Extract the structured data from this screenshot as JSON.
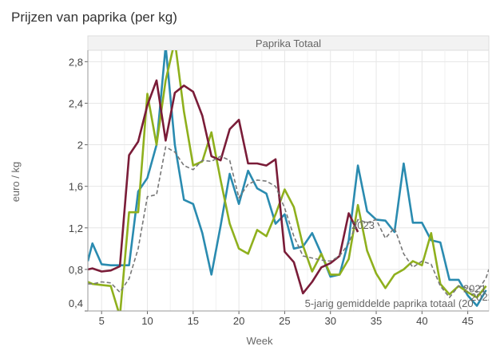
{
  "chart_data": {
    "type": "line",
    "title": "Prijzen van paprika (per kg)",
    "panel_title": "Paprika Totaal",
    "xlabel": "Week",
    "ylabel": "euro / kg",
    "xlim": [
      3.5,
      47.3
    ],
    "ylim": [
      0.4,
      2.91
    ],
    "xticks": [
      5,
      10,
      15,
      20,
      25,
      30,
      35,
      40,
      45
    ],
    "yticks": [
      0.4,
      0.8,
      1.2,
      1.6,
      2.0,
      2.4,
      2.8
    ],
    "ytick_labels": [
      "0,4",
      "0,8",
      "1,2",
      "1,6",
      "2",
      "2,4",
      "2,8"
    ],
    "grid": true,
    "series": [
      {
        "name": "2021",
        "color": "#2a8bb0",
        "dash": false,
        "label": "2021",
        "label_at": [
          44.5,
          0.58
        ],
        "x": [
          3.5,
          4,
          5,
          6,
          7,
          8,
          9,
          10,
          11,
          12,
          13,
          14,
          15,
          16,
          17,
          18,
          19,
          20,
          21,
          22,
          23,
          24,
          25,
          26,
          27,
          28,
          29,
          30,
          31,
          32,
          33,
          34,
          35,
          36,
          37,
          38,
          39,
          40,
          41,
          42,
          43,
          44,
          45,
          46,
          47
        ],
        "y": [
          0.88,
          1.05,
          0.85,
          0.84,
          0.84,
          0.84,
          1.55,
          1.68,
          2.0,
          2.95,
          2.0,
          1.47,
          1.43,
          1.15,
          0.75,
          1.22,
          1.72,
          1.43,
          1.75,
          1.58,
          1.53,
          1.24,
          1.33,
          1.0,
          1.02,
          1.15,
          0.95,
          0.73,
          0.75,
          1.08,
          1.8,
          1.36,
          1.28,
          1.27,
          1.16,
          1.82,
          1.25,
          1.25,
          1.08,
          1.06,
          0.7,
          0.7,
          0.55,
          0.45,
          0.6
        ]
      },
      {
        "name": "2022",
        "color": "#8fb01d",
        "dash": false,
        "label": "2022",
        "label_at": [
          45.3,
          0.5
        ],
        "x": [
          3.5,
          4,
          5,
          6,
          7,
          8,
          9,
          10,
          11,
          12,
          13,
          14,
          15,
          16,
          17,
          18,
          19,
          20,
          21,
          22,
          23,
          24,
          25,
          26,
          27,
          28,
          29,
          30,
          31,
          32,
          33,
          34,
          35,
          36,
          37,
          38,
          39,
          40,
          41,
          42,
          43,
          44,
          45,
          46,
          47
        ],
        "y": [
          0.68,
          0.66,
          0.65,
          0.64,
          0.35,
          1.35,
          1.35,
          2.49,
          2.0,
          2.62,
          3.0,
          2.32,
          1.8,
          1.84,
          2.12,
          1.66,
          1.24,
          1.0,
          0.95,
          1.18,
          1.12,
          1.33,
          1.57,
          1.4,
          1.03,
          0.78,
          0.95,
          0.75,
          0.75,
          0.9,
          1.42,
          0.98,
          0.76,
          0.62,
          0.75,
          0.8,
          0.88,
          0.84,
          1.15,
          0.66,
          0.56,
          0.64,
          0.58,
          0.53,
          0.64
        ]
      },
      {
        "name": "2023",
        "color": "#7a1c38",
        "dash": false,
        "label": "2023",
        "label_at": [
          32.3,
          1.19
        ],
        "x": [
          3.5,
          4,
          5,
          6,
          7,
          8,
          9,
          10,
          11,
          12,
          13,
          14,
          15,
          16,
          17,
          18,
          19,
          20,
          21,
          22,
          23,
          24,
          25,
          26,
          27,
          28,
          29,
          30,
          31,
          32,
          33
        ],
        "y": [
          0.8,
          0.81,
          0.78,
          0.79,
          0.83,
          1.9,
          2.03,
          2.38,
          2.62,
          2.04,
          2.5,
          2.57,
          2.51,
          2.28,
          1.89,
          1.85,
          2.15,
          2.24,
          1.82,
          1.82,
          1.8,
          1.86,
          0.97,
          0.87,
          0.57,
          0.68,
          0.82,
          0.86,
          0.93,
          1.34,
          1.16
        ]
      },
      {
        "name": "5-jarig gemiddelde paprika totaal",
        "color": "#777777",
        "dash": true,
        "label": "5-jarig gemiddelde paprika totaal (20",
        "label_at": [
          27.2,
          0.44
        ],
        "x": [
          3.5,
          4,
          5,
          6,
          7,
          8,
          9,
          10,
          11,
          12,
          13,
          14,
          15,
          16,
          17,
          18,
          19,
          20,
          21,
          22,
          23,
          24,
          25,
          26,
          27,
          28,
          29,
          30,
          31,
          32,
          33,
          34,
          35,
          36,
          37,
          38,
          39,
          40,
          41,
          42,
          43,
          44,
          45,
          46,
          47,
          47.3
        ],
        "y": [
          0.66,
          0.66,
          0.68,
          0.67,
          0.58,
          0.71,
          1.0,
          1.5,
          1.52,
          1.98,
          1.93,
          1.8,
          1.76,
          1.85,
          1.84,
          1.89,
          1.85,
          1.49,
          1.62,
          1.66,
          1.65,
          1.6,
          1.39,
          1.12,
          0.93,
          0.91,
          0.89,
          0.88,
          0.93,
          1.05,
          1.28,
          1.25,
          1.28,
          1.1,
          1.2,
          0.95,
          0.82,
          0.88,
          0.85,
          0.64,
          0.53,
          0.64,
          0.62,
          0.58,
          0.72,
          0.8
        ]
      }
    ]
  }
}
